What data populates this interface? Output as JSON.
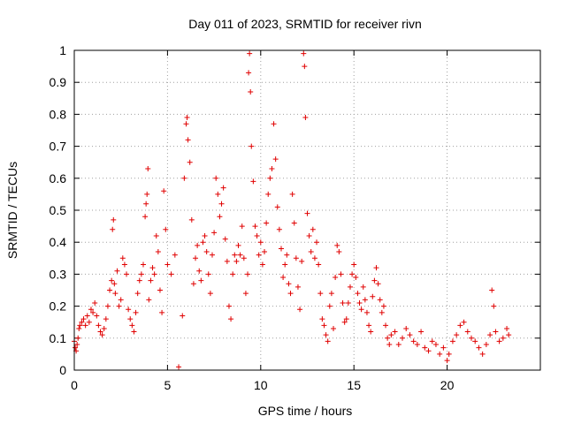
{
  "chart_data": {
    "type": "scatter",
    "title": "Day 011 of 2023, SRMTID for receiver rivn",
    "xlabel": "GPS time / hours",
    "ylabel": "SRMTID / TECUs",
    "xlim": [
      0,
      25
    ],
    "ylim": [
      0,
      1
    ],
    "xticks": [
      0,
      5,
      10,
      15,
      20
    ],
    "xtick_labels": [
      "0",
      "5",
      "10",
      "15",
      "20"
    ],
    "yticks": [
      0,
      0.1,
      0.2,
      0.3,
      0.4,
      0.5,
      0.6,
      0.7,
      0.8,
      0.9,
      1
    ],
    "ytick_labels": [
      "0",
      "0.1",
      "0.2",
      "0.3",
      "0.4",
      "0.5",
      "0.6",
      "0.7",
      "0.8",
      "0.9",
      "1"
    ],
    "grid": true,
    "marker": "plus",
    "color": "#e00000",
    "series": [
      {
        "name": "SRMTID",
        "points": [
          [
            0.0,
            0.09
          ],
          [
            0.05,
            0.07
          ],
          [
            0.1,
            0.06
          ],
          [
            0.15,
            0.08
          ],
          [
            0.2,
            0.1
          ],
          [
            0.25,
            0.13
          ],
          [
            0.3,
            0.14
          ],
          [
            0.4,
            0.15
          ],
          [
            0.5,
            0.16
          ],
          [
            0.6,
            0.14
          ],
          [
            0.7,
            0.17
          ],
          [
            0.8,
            0.15
          ],
          [
            0.9,
            0.19
          ],
          [
            1.0,
            0.18
          ],
          [
            1.1,
            0.21
          ],
          [
            1.2,
            0.17
          ],
          [
            1.3,
            0.14
          ],
          [
            1.4,
            0.12
          ],
          [
            1.5,
            0.11
          ],
          [
            1.6,
            0.13
          ],
          [
            1.7,
            0.16
          ],
          [
            1.8,
            0.2
          ],
          [
            1.9,
            0.25
          ],
          [
            2.0,
            0.28
          ],
          [
            2.05,
            0.44
          ],
          [
            2.1,
            0.47
          ],
          [
            2.15,
            0.27
          ],
          [
            2.2,
            0.24
          ],
          [
            2.3,
            0.31
          ],
          [
            2.4,
            0.2
          ],
          [
            2.5,
            0.22
          ],
          [
            2.6,
            0.35
          ],
          [
            2.7,
            0.33
          ],
          [
            2.8,
            0.3
          ],
          [
            2.9,
            0.19
          ],
          [
            3.0,
            0.16
          ],
          [
            3.1,
            0.14
          ],
          [
            3.2,
            0.12
          ],
          [
            3.3,
            0.18
          ],
          [
            3.4,
            0.24
          ],
          [
            3.5,
            0.28
          ],
          [
            3.6,
            0.3
          ],
          [
            3.7,
            0.33
          ],
          [
            3.8,
            0.48
          ],
          [
            3.85,
            0.52
          ],
          [
            3.9,
            0.55
          ],
          [
            3.95,
            0.63
          ],
          [
            4.0,
            0.22
          ],
          [
            4.1,
            0.28
          ],
          [
            4.2,
            0.32
          ],
          [
            4.3,
            0.3
          ],
          [
            4.4,
            0.42
          ],
          [
            4.5,
            0.37
          ],
          [
            4.6,
            0.25
          ],
          [
            4.7,
            0.18
          ],
          [
            4.8,
            0.56
          ],
          [
            4.9,
            0.44
          ],
          [
            5.0,
            0.33
          ],
          [
            5.2,
            0.3
          ],
          [
            5.4,
            0.36
          ],
          [
            5.6,
            0.01
          ],
          [
            5.8,
            0.17
          ],
          [
            5.9,
            0.6
          ],
          [
            6.0,
            0.77
          ],
          [
            6.05,
            0.79
          ],
          [
            6.1,
            0.72
          ],
          [
            6.2,
            0.65
          ],
          [
            6.3,
            0.47
          ],
          [
            6.4,
            0.27
          ],
          [
            6.5,
            0.35
          ],
          [
            6.6,
            0.39
          ],
          [
            6.7,
            0.31
          ],
          [
            6.8,
            0.28
          ],
          [
            6.9,
            0.4
          ],
          [
            7.0,
            0.42
          ],
          [
            7.1,
            0.37
          ],
          [
            7.2,
            0.3
          ],
          [
            7.3,
            0.24
          ],
          [
            7.4,
            0.36
          ],
          [
            7.5,
            0.43
          ],
          [
            7.6,
            0.6
          ],
          [
            7.7,
            0.55
          ],
          [
            7.8,
            0.48
          ],
          [
            7.9,
            0.52
          ],
          [
            8.0,
            0.57
          ],
          [
            8.1,
            0.41
          ],
          [
            8.2,
            0.34
          ],
          [
            8.3,
            0.2
          ],
          [
            8.4,
            0.16
          ],
          [
            8.5,
            0.3
          ],
          [
            8.6,
            0.36
          ],
          [
            8.7,
            0.34
          ],
          [
            8.8,
            0.39
          ],
          [
            8.9,
            0.36
          ],
          [
            9.0,
            0.45
          ],
          [
            9.1,
            0.35
          ],
          [
            9.2,
            0.24
          ],
          [
            9.3,
            0.3
          ],
          [
            9.35,
            0.93
          ],
          [
            9.4,
            0.99
          ],
          [
            9.45,
            0.87
          ],
          [
            9.5,
            0.7
          ],
          [
            9.6,
            0.59
          ],
          [
            9.7,
            0.45
          ],
          [
            9.8,
            0.42
          ],
          [
            9.9,
            0.36
          ],
          [
            10.0,
            0.4
          ],
          [
            10.1,
            0.33
          ],
          [
            10.2,
            0.37
          ],
          [
            10.3,
            0.46
          ],
          [
            10.4,
            0.55
          ],
          [
            10.5,
            0.6
          ],
          [
            10.6,
            0.63
          ],
          [
            10.7,
            0.77
          ],
          [
            10.8,
            0.66
          ],
          [
            10.9,
            0.51
          ],
          [
            11.0,
            0.44
          ],
          [
            11.1,
            0.38
          ],
          [
            11.2,
            0.29
          ],
          [
            11.3,
            0.33
          ],
          [
            11.4,
            0.36
          ],
          [
            11.5,
            0.27
          ],
          [
            11.6,
            0.24
          ],
          [
            11.7,
            0.55
          ],
          [
            11.8,
            0.46
          ],
          [
            11.9,
            0.35
          ],
          [
            12.0,
            0.26
          ],
          [
            12.1,
            0.19
          ],
          [
            12.2,
            0.34
          ],
          [
            12.3,
            0.99
          ],
          [
            12.35,
            0.95
          ],
          [
            12.4,
            0.79
          ],
          [
            12.5,
            0.49
          ],
          [
            12.6,
            0.42
          ],
          [
            12.7,
            0.37
          ],
          [
            12.8,
            0.44
          ],
          [
            12.9,
            0.35
          ],
          [
            13.0,
            0.4
          ],
          [
            13.1,
            0.33
          ],
          [
            13.2,
            0.24
          ],
          [
            13.3,
            0.16
          ],
          [
            13.4,
            0.14
          ],
          [
            13.5,
            0.11
          ],
          [
            13.6,
            0.09
          ],
          [
            13.7,
            0.2
          ],
          [
            13.8,
            0.24
          ],
          [
            13.9,
            0.13
          ],
          [
            14.0,
            0.29
          ],
          [
            14.1,
            0.39
          ],
          [
            14.2,
            0.37
          ],
          [
            14.3,
            0.3
          ],
          [
            14.4,
            0.21
          ],
          [
            14.5,
            0.15
          ],
          [
            14.6,
            0.16
          ],
          [
            14.7,
            0.21
          ],
          [
            14.8,
            0.26
          ],
          [
            14.9,
            0.3
          ],
          [
            15.0,
            0.33
          ],
          [
            15.1,
            0.29
          ],
          [
            15.2,
            0.24
          ],
          [
            15.3,
            0.21
          ],
          [
            15.4,
            0.19
          ],
          [
            15.5,
            0.26
          ],
          [
            15.6,
            0.22
          ],
          [
            15.7,
            0.18
          ],
          [
            15.8,
            0.14
          ],
          [
            15.9,
            0.12
          ],
          [
            16.0,
            0.23
          ],
          [
            16.1,
            0.28
          ],
          [
            16.2,
            0.32
          ],
          [
            16.3,
            0.27
          ],
          [
            16.4,
            0.22
          ],
          [
            16.5,
            0.18
          ],
          [
            16.6,
            0.2
          ],
          [
            16.7,
            0.14
          ],
          [
            16.8,
            0.1
          ],
          [
            16.9,
            0.08
          ],
          [
            17.0,
            0.11
          ],
          [
            17.2,
            0.12
          ],
          [
            17.4,
            0.08
          ],
          [
            17.6,
            0.1
          ],
          [
            17.8,
            0.13
          ],
          [
            18.0,
            0.11
          ],
          [
            18.2,
            0.09
          ],
          [
            18.4,
            0.08
          ],
          [
            18.6,
            0.12
          ],
          [
            18.8,
            0.07
          ],
          [
            19.0,
            0.06
          ],
          [
            19.2,
            0.09
          ],
          [
            19.4,
            0.08
          ],
          [
            19.6,
            0.05
          ],
          [
            19.8,
            0.07
          ],
          [
            20.0,
            0.03
          ],
          [
            20.1,
            0.05
          ],
          [
            20.3,
            0.09
          ],
          [
            20.5,
            0.11
          ],
          [
            20.7,
            0.14
          ],
          [
            20.9,
            0.15
          ],
          [
            21.1,
            0.12
          ],
          [
            21.3,
            0.1
          ],
          [
            21.5,
            0.09
          ],
          [
            21.7,
            0.07
          ],
          [
            21.9,
            0.05
          ],
          [
            22.1,
            0.08
          ],
          [
            22.3,
            0.11
          ],
          [
            22.4,
            0.25
          ],
          [
            22.5,
            0.2
          ],
          [
            22.6,
            0.12
          ],
          [
            22.8,
            0.09
          ],
          [
            23.0,
            0.1
          ],
          [
            23.2,
            0.13
          ],
          [
            23.3,
            0.11
          ]
        ]
      }
    ]
  }
}
